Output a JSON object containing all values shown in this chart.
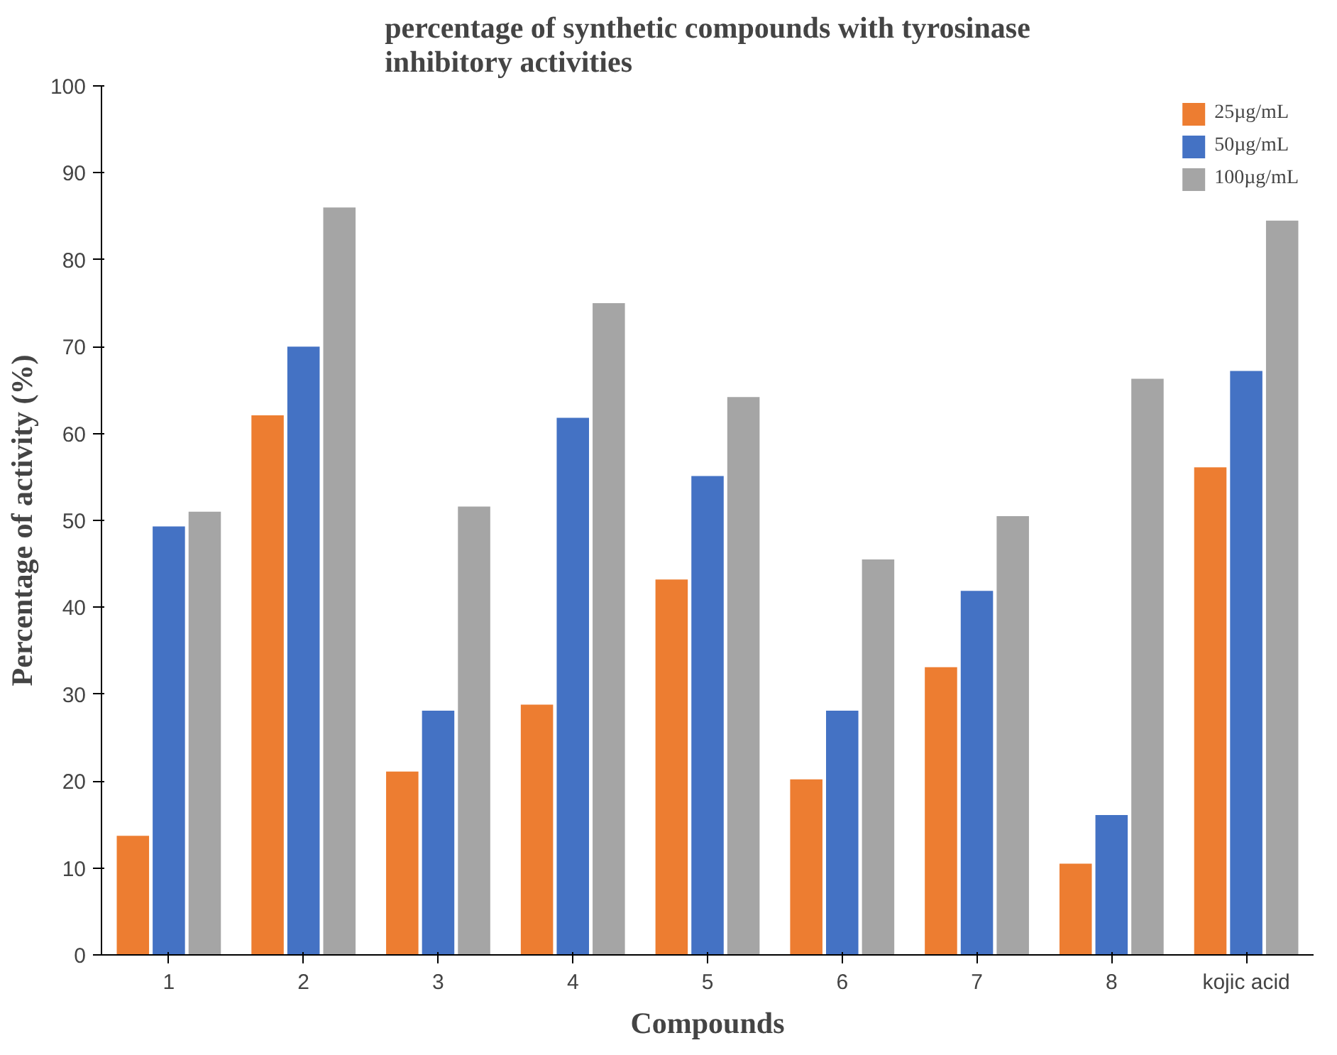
{
  "chart_data": {
    "type": "bar",
    "title": "percentage of synthetic compounds with tyrosinase inhibitory activities",
    "xlabel": "Compounds",
    "ylabel": "Percentage of activity (%)",
    "categories": [
      "1",
      "2",
      "3",
      "4",
      "5",
      "6",
      "7",
      "8",
      "kojic acid"
    ],
    "series": [
      {
        "name": "25µg/mL",
        "color": "#ed7d31",
        "values": [
          13.7,
          62.1,
          21.1,
          28.8,
          43.2,
          20.2,
          33.1,
          10.5,
          56.1
        ]
      },
      {
        "name": "50µg/mL",
        "color": "#4472c4",
        "values": [
          49.3,
          70,
          28.1,
          61.8,
          55.1,
          28.1,
          41.9,
          16.1,
          67.2
        ]
      },
      {
        "name": "100µg/mL",
        "color": "#a5a5a5",
        "values": [
          51,
          86,
          51.6,
          75,
          64.2,
          45.5,
          50.5,
          66.3,
          84.5
        ]
      }
    ],
    "ylim": [
      0,
      100
    ],
    "yticks": [
      0,
      10,
      20,
      30,
      40,
      50,
      60,
      70,
      80,
      90,
      100
    ],
    "grid": false,
    "legend": "top right"
  }
}
